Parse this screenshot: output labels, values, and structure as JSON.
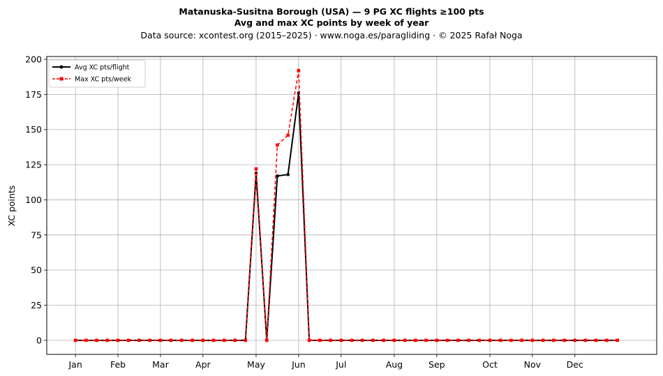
{
  "chart_data": {
    "type": "line",
    "title_line1": "Matanuska-Susitna Borough (USA)  —  9 PG XC flights ≥100 pts",
    "title_line2": "Avg and max XC points by week of year",
    "subtitle": "Data source: xcontest.org (2015–2025)  ·  www.noga.es/paragliding  ·  © 2025 Rafał Noga",
    "xlabel": "",
    "ylabel": "XC points",
    "ylim": [
      -10,
      202
    ],
    "yticks": [
      0,
      25,
      50,
      75,
      100,
      125,
      150,
      175,
      200
    ],
    "xlim": [
      -2.7,
      54.7
    ],
    "month_ticks": [
      {
        "label": "Jan",
        "week": 0
      },
      {
        "label": "Feb",
        "week": 4
      },
      {
        "label": "Mar",
        "week": 8
      },
      {
        "label": "Apr",
        "week": 12
      },
      {
        "label": "May",
        "week": 17
      },
      {
        "label": "Jun",
        "week": 21
      },
      {
        "label": "Jul",
        "week": 25
      },
      {
        "label": "Aug",
        "week": 30
      },
      {
        "label": "Sep",
        "week": 34
      },
      {
        "label": "Oct",
        "week": 39
      },
      {
        "label": "Nov",
        "week": 43
      },
      {
        "label": "Dec",
        "week": 47
      }
    ],
    "grid": true,
    "legend_position": "top-left",
    "x": [
      0,
      1,
      2,
      3,
      4,
      5,
      6,
      7,
      8,
      9,
      10,
      11,
      12,
      13,
      14,
      15,
      16,
      17,
      18,
      19,
      20,
      21,
      22,
      23,
      24,
      25,
      26,
      27,
      28,
      29,
      30,
      31,
      32,
      33,
      34,
      35,
      36,
      37,
      38,
      39,
      40,
      41,
      42,
      43,
      44,
      45,
      46,
      47,
      48,
      49,
      50,
      51
    ],
    "series": [
      {
        "name": "Avg XC pts/flight",
        "color": "#000000",
        "style": "solid",
        "marker": "circle",
        "values": [
          0,
          0,
          0,
          0,
          0,
          0,
          0,
          0,
          0,
          0,
          0,
          0,
          0,
          0,
          0,
          0,
          0,
          119,
          0,
          117,
          118,
          176,
          0,
          0,
          0,
          0,
          0,
          0,
          0,
          0,
          0,
          0,
          0,
          0,
          0,
          0,
          0,
          0,
          0,
          0,
          0,
          0,
          0,
          0,
          0,
          0,
          0,
          0,
          0,
          0,
          0,
          0
        ]
      },
      {
        "name": "Max XC pts/week",
        "color": "#ff0000",
        "style": "dashed",
        "marker": "square",
        "values": [
          0,
          0,
          0,
          0,
          0,
          0,
          0,
          0,
          0,
          0,
          0,
          0,
          0,
          0,
          0,
          0,
          0,
          122,
          0,
          139,
          146,
          192,
          0,
          0,
          0,
          0,
          0,
          0,
          0,
          0,
          0,
          0,
          0,
          0,
          0,
          0,
          0,
          0,
          0,
          0,
          0,
          0,
          0,
          0,
          0,
          0,
          0,
          0,
          0,
          0,
          0,
          0
        ]
      }
    ]
  }
}
